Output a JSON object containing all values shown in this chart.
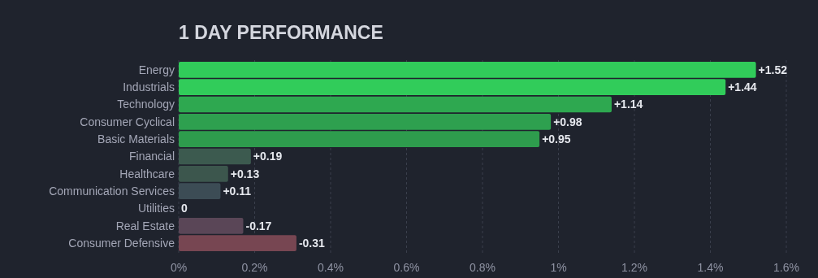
{
  "chart_data": {
    "type": "bar",
    "orientation": "horizontal",
    "title": "1 DAY PERFORMANCE",
    "categories": [
      "Energy",
      "Industrials",
      "Technology",
      "Consumer Cyclical",
      "Basic Materials",
      "Financial",
      "Healthcare",
      "Communication Services",
      "Utilities",
      "Real Estate",
      "Consumer Defensive"
    ],
    "values": [
      1.52,
      1.44,
      1.14,
      0.98,
      0.95,
      0.19,
      0.13,
      0.11,
      0,
      -0.17,
      -0.31
    ],
    "base": [
      0,
      0,
      0,
      0,
      0,
      0,
      0,
      0,
      null,
      0.17,
      0.31
    ],
    "value_labels": [
      "+1.52",
      "+1.44",
      "+1.14",
      "+0.98",
      "+0.95",
      "+0.19",
      "+0.13",
      "+0.11",
      "0",
      "-0.17",
      "-0.31"
    ],
    "colors": [
      "#31cc5a",
      "#31cc5a",
      "#2ea850",
      "#2ea04f",
      "#2e9c4d",
      "#3c5a4f",
      "#3c564d",
      "#3c4c55",
      "#3c4c55",
      "#5a4657",
      "#774652"
    ],
    "xlim": [
      0,
      1.6
    ],
    "xticks": [
      {
        "value": 0,
        "label": "0%"
      },
      {
        "value": 0.2,
        "label": "0.2%"
      },
      {
        "value": 0.4,
        "label": "0.4%"
      },
      {
        "value": 0.6,
        "label": "0.6%"
      },
      {
        "value": 0.8,
        "label": "0.8%"
      },
      {
        "value": 1,
        "label": "1%"
      },
      {
        "value": 1.2,
        "label": "1.2%"
      },
      {
        "value": 1.4,
        "label": "1.4%"
      },
      {
        "value": 1.6,
        "label": "1.6%"
      }
    ],
    "grid": "x"
  }
}
